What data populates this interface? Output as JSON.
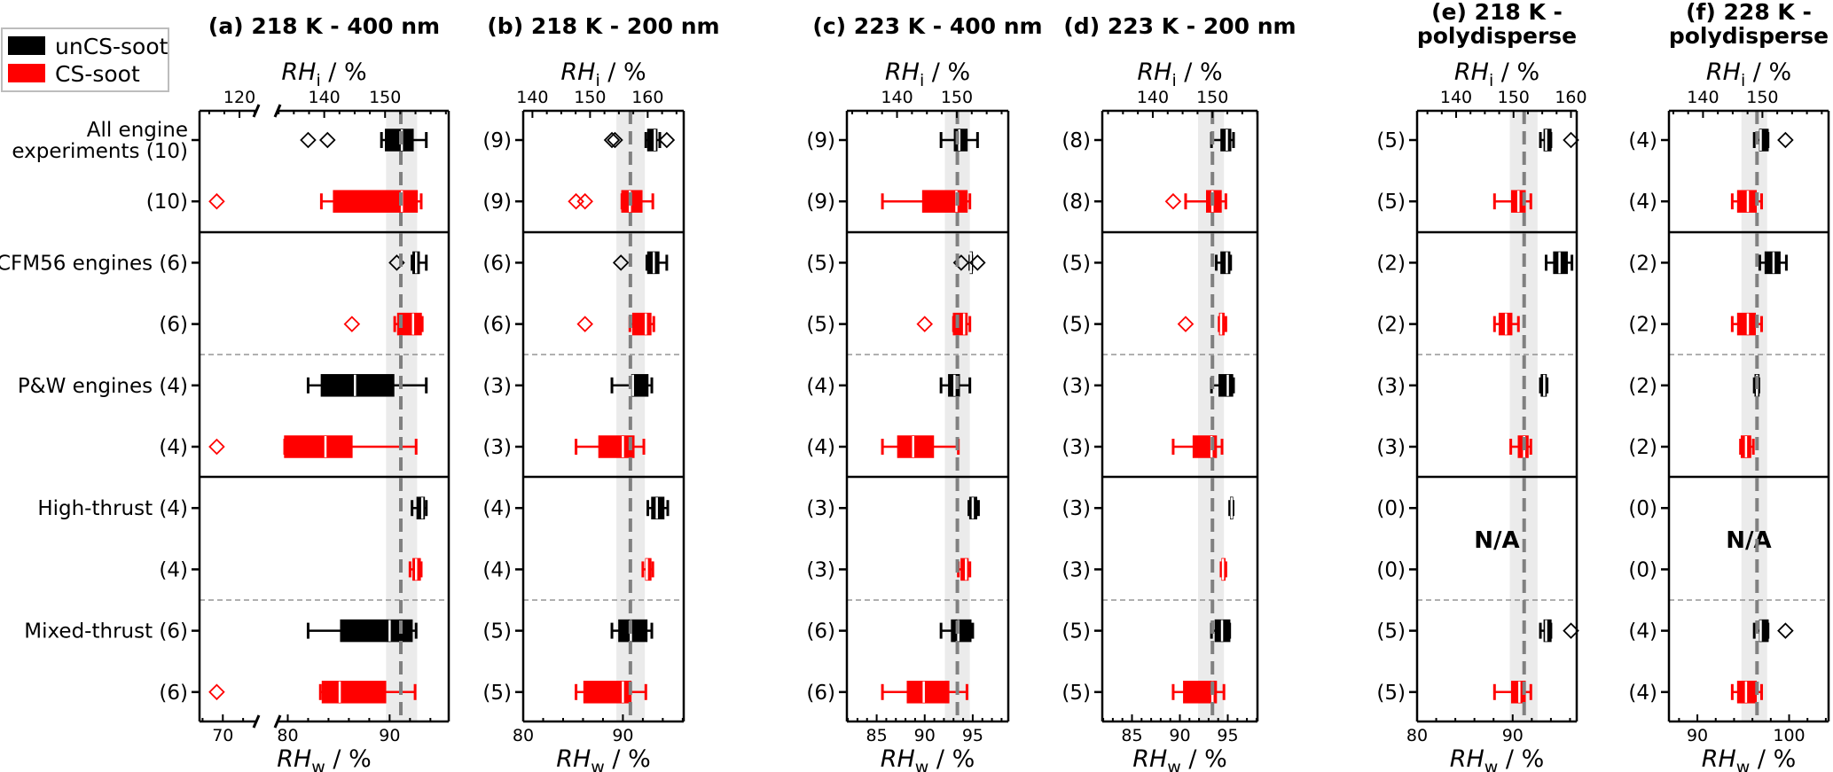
{
  "legend": {
    "items": [
      {
        "label": "unCS-soot",
        "color": "#000000"
      },
      {
        "label": "CS-soot",
        "color": "#ff0000"
      }
    ]
  },
  "chart_data": [
    {
      "type": "box",
      "title": [
        "(a) 218 K - 400 nm"
      ],
      "top_xlabel": {
        "var": "RH",
        "sub": "i",
        "unit": " / %"
      },
      "xlabel": {
        "var": "RH",
        "sub": "w",
        "unit": " / %"
      },
      "xlim": [
        67.7,
        95.8
      ],
      "xbreak": [
        73.3,
        79.0
      ],
      "xticks": [
        70,
        80,
        90
      ],
      "minor_step": 2,
      "top_ticks": [
        120,
        140,
        150
      ],
      "rhi_per_rhw": 1.675,
      "threshold_rhw": 91.1,
      "threshold_band": [
        89.65,
        92.7
      ],
      "na_label": "",
      "rows": [
        {
          "label": "All engine\nexperiments (10)",
          "series": "unCS-soot",
          "stats": [
            89.2,
            89.6,
            91.2,
            92.3,
            93.6
          ],
          "fliers": [
            82.0,
            83.9
          ]
        },
        {
          "label": "(10)",
          "series": "CS-soot",
          "stats": [
            83.3,
            84.5,
            91.2,
            92.7,
            93.1
          ],
          "fliers": [
            69.4
          ]
        },
        {
          "label": "CFM56 engines (6)",
          "series": "unCS-soot",
          "stats": [
            92.2,
            92.3,
            92.6,
            92.9,
            93.6
          ],
          "fliers": [
            90.7
          ]
        },
        {
          "label": "(6)",
          "series": "CS-soot",
          "stats": [
            90.5,
            90.8,
            92.3,
            93.1,
            93.2
          ],
          "fliers": [
            86.3
          ]
        },
        {
          "label": "P&W engines (4)",
          "series": "unCS-soot",
          "stats": [
            82.0,
            83.3,
            86.6,
            90.4,
            93.6
          ],
          "fliers": []
        },
        {
          "label": "(4)",
          "series": "CS-soot",
          "stats": [
            79.7,
            79.7,
            83.7,
            86.3,
            92.6
          ],
          "fliers": [
            69.4
          ]
        },
        {
          "label": "High-thrust (4)",
          "series": "unCS-soot",
          "stats": [
            92.2,
            92.7,
            93.2,
            93.4,
            93.6
          ],
          "fliers": []
        },
        {
          "label": "(4)",
          "series": "CS-soot",
          "stats": [
            92.0,
            92.3,
            92.6,
            93.0,
            93.1
          ],
          "fliers": []
        },
        {
          "label": "Mixed-thrust (6)",
          "series": "unCS-soot",
          "stats": [
            82.0,
            85.2,
            90.0,
            92.2,
            92.6
          ],
          "fliers": []
        },
        {
          "label": "(6)",
          "series": "CS-soot",
          "stats": [
            83.2,
            83.4,
            85.1,
            89.6,
            92.5
          ],
          "fliers": [
            69.4
          ]
        }
      ]
    },
    {
      "type": "box",
      "title": [
        "(b) 218 K - 200 nm"
      ],
      "top_xlabel": {
        "var": "RH",
        "sub": "i",
        "unit": " / %"
      },
      "xlabel": {
        "var": "RH",
        "sub": "w",
        "unit": " / %"
      },
      "xlim": [
        80,
        96.1
      ],
      "xbreak": null,
      "xticks": [
        80,
        90
      ],
      "minor_step": 2,
      "top_ticks": [
        140,
        150,
        160
      ],
      "rhi_per_rhw": 1.73,
      "threshold_rhw": 90.75,
      "threshold_band": [
        89.35,
        92.2
      ],
      "na_label": "",
      "rows": [
        {
          "label": "(9)",
          "series": "unCS-soot",
          "stats": [
            92.3,
            92.5,
            93.2,
            93.4,
            93.7
          ],
          "fliers": [
            88.9,
            89.2,
            94.4
          ]
        },
        {
          "label": "(9)",
          "series": "CS-soot",
          "stats": [
            89.9,
            89.9,
            90.7,
            91.9,
            93.0
          ],
          "fliers": [
            85.3,
            86.2
          ]
        },
        {
          "label": "(6)",
          "series": "unCS-soot",
          "stats": [
            92.4,
            92.5,
            93.1,
            93.6,
            94.4
          ],
          "fliers": [
            89.8
          ]
        },
        {
          "label": "(6)",
          "series": "CS-soot",
          "stats": [
            90.7,
            91.0,
            92.3,
            92.8,
            93.1
          ],
          "fliers": [
            86.2
          ]
        },
        {
          "label": "(3)",
          "series": "unCS-soot",
          "stats": [
            88.9,
            90.9,
            91.0,
            92.5,
            92.9
          ],
          "fliers": []
        },
        {
          "label": "(3)",
          "series": "CS-soot",
          "stats": [
            85.3,
            87.6,
            90.0,
            91.1,
            92.1
          ],
          "fliers": []
        },
        {
          "label": "(4)",
          "series": "unCS-soot",
          "stats": [
            92.5,
            92.9,
            93.4,
            94.1,
            94.5
          ],
          "fliers": []
        },
        {
          "label": "(4)",
          "series": "CS-soot",
          "stats": [
            92.0,
            92.3,
            92.4,
            92.8,
            93.0
          ],
          "fliers": []
        },
        {
          "label": "(5)",
          "series": "unCS-soot",
          "stats": [
            88.9,
            89.6,
            90.8,
            92.4,
            92.9
          ],
          "fliers": []
        },
        {
          "label": "(5)",
          "series": "CS-soot",
          "stats": [
            85.3,
            86.1,
            90.0,
            90.8,
            92.3
          ],
          "fliers": []
        }
      ]
    },
    {
      "type": "box",
      "title": [
        "(c) 223 K - 400 nm"
      ],
      "top_xlabel": {
        "var": "RH",
        "sub": "i",
        "unit": " / %"
      },
      "xlabel": {
        "var": "RH",
        "sub": "w",
        "unit": " / %"
      },
      "xlim": [
        81.9,
        98.7
      ],
      "xbreak": null,
      "xticks": [
        85,
        90,
        95
      ],
      "minor_step": 1,
      "top_ticks": [
        140,
        150
      ],
      "rhi_per_rhw": 1.607,
      "threshold_rhw": 93.4,
      "threshold_band": [
        92.1,
        94.7
      ],
      "na_label": "",
      "rows": [
        {
          "label": "(9)",
          "series": "unCS-soot",
          "stats": [
            91.7,
            93.1,
            93.6,
            94.4,
            95.5
          ],
          "fliers": []
        },
        {
          "label": "(9)",
          "series": "CS-soot",
          "stats": [
            85.6,
            89.8,
            93.3,
            94.4,
            94.7
          ],
          "fliers": []
        },
        {
          "label": "(5)",
          "series": "unCS-soot",
          "stats": [
            94.7,
            94.75,
            94.8,
            94.85,
            94.9
          ],
          "fliers": [
            93.8,
            95.5
          ]
        },
        {
          "label": "(5)",
          "series": "CS-soot",
          "stats": [
            93.0,
            93.0,
            94.1,
            94.4,
            94.7
          ],
          "fliers": [
            90.0
          ]
        },
        {
          "label": "(4)",
          "series": "unCS-soot",
          "stats": [
            91.7,
            92.5,
            93.1,
            93.6,
            94.7
          ],
          "fliers": []
        },
        {
          "label": "(4)",
          "series": "CS-soot",
          "stats": [
            85.6,
            87.2,
            88.8,
            90.9,
            93.5
          ],
          "fliers": []
        },
        {
          "label": "(3)",
          "series": "unCS-soot",
          "stats": [
            94.6,
            94.7,
            95.0,
            95.4,
            95.6
          ],
          "fliers": []
        },
        {
          "label": "(3)",
          "series": "CS-soot",
          "stats": [
            93.5,
            93.8,
            94.3,
            94.5,
            94.7
          ],
          "fliers": []
        },
        {
          "label": "(6)",
          "series": "unCS-soot",
          "stats": [
            91.7,
            92.8,
            93.5,
            94.8,
            95.0
          ],
          "fliers": []
        },
        {
          "label": "(6)",
          "series": "CS-soot",
          "stats": [
            85.6,
            88.2,
            89.9,
            92.5,
            94.4
          ],
          "fliers": []
        }
      ]
    },
    {
      "type": "box",
      "title": [
        "(d) 223 K - 200 nm"
      ],
      "top_xlabel": {
        "var": "RH",
        "sub": "i",
        "unit": " / %"
      },
      "xlabel": {
        "var": "RH",
        "sub": "w",
        "unit": " / %"
      },
      "xlim": [
        81.9,
        98.1
      ],
      "xbreak": null,
      "xticks": [
        85,
        90,
        95
      ],
      "minor_step": 1,
      "top_ticks": [
        140,
        150
      ],
      "rhi_per_rhw": 1.606,
      "threshold_rhw": 93.4,
      "threshold_band": [
        91.9,
        94.6
      ],
      "na_label": "",
      "rows": [
        {
          "label": "(8)",
          "series": "unCS-soot",
          "stats": [
            93.3,
            94.3,
            94.9,
            95.3,
            95.6
          ],
          "fliers": []
        },
        {
          "label": "(8)",
          "series": "CS-soot",
          "stats": [
            90.6,
            92.8,
            93.4,
            94.3,
            94.8
          ],
          "fliers": [
            89.3
          ]
        },
        {
          "label": "(5)",
          "series": "unCS-soot",
          "stats": [
            93.8,
            94.3,
            94.9,
            95.2,
            95.3
          ],
          "fliers": []
        },
        {
          "label": "(5)",
          "series": "CS-soot",
          "stats": [
            94.1,
            94.15,
            94.3,
            94.6,
            94.8
          ],
          "fliers": [
            90.6
          ]
        },
        {
          "label": "(3)",
          "series": "unCS-soot",
          "stats": [
            93.3,
            94.1,
            95.0,
            95.5,
            95.6
          ],
          "fliers": []
        },
        {
          "label": "(3)",
          "series": "CS-soot",
          "stats": [
            89.3,
            91.4,
            93.3,
            93.8,
            94.4
          ],
          "fliers": []
        },
        {
          "label": "(3)",
          "series": "unCS-soot",
          "stats": [
            95.2,
            95.3,
            95.4,
            95.5,
            95.55
          ],
          "fliers": []
        },
        {
          "label": "(3)",
          "series": "CS-soot",
          "stats": [
            94.3,
            94.4,
            94.5,
            94.7,
            94.8
          ],
          "fliers": []
        },
        {
          "label": "(5)",
          "series": "unCS-soot",
          "stats": [
            93.3,
            93.7,
            94.4,
            95.2,
            95.2
          ],
          "fliers": []
        },
        {
          "label": "(5)",
          "series": "CS-soot",
          "stats": [
            89.3,
            90.4,
            93.4,
            93.8,
            94.6
          ],
          "fliers": []
        }
      ]
    },
    {
      "type": "box",
      "title": [
        "(e) 218 K -",
        "polydisperse"
      ],
      "top_xlabel": {
        "var": "RH",
        "sub": "i",
        "unit": " / %"
      },
      "xlabel": {
        "var": "RH",
        "sub": "w",
        "unit": " / %"
      },
      "xlim": [
        80,
        96.7
      ],
      "xbreak": null,
      "xticks": [
        80,
        90
      ],
      "minor_step": 2,
      "top_ticks": [
        140,
        150,
        160
      ],
      "rhi_per_rhw": 1.665,
      "threshold_rhw": 91.2,
      "threshold_band": [
        89.7,
        92.6
      ],
      "na_label": "N/A",
      "rows": [
        {
          "label": "(5)",
          "series": "unCS-soot",
          "stats": [
            92.9,
            93.3,
            93.5,
            94.0,
            94.0
          ],
          "fliers": [
            96.1
          ]
        },
        {
          "label": "(5)",
          "series": "CS-soot",
          "stats": [
            88.1,
            89.9,
            90.6,
            91.3,
            91.9
          ],
          "fliers": []
        },
        {
          "label": "(2)",
          "series": "unCS-soot",
          "stats": [
            93.5,
            94.3,
            94.9,
            95.7,
            96.2
          ],
          "fliers": []
        },
        {
          "label": "(2)",
          "series": "CS-soot",
          "stats": [
            88.1,
            88.6,
            89.3,
            89.9,
            90.6
          ],
          "fliers": []
        },
        {
          "label": "(3)",
          "series": "unCS-soot",
          "stats": [
            92.9,
            93.0,
            93.3,
            93.5,
            93.6
          ],
          "fliers": []
        },
        {
          "label": "(3)",
          "series": "CS-soot",
          "stats": [
            89.8,
            90.6,
            91.2,
            91.6,
            91.9
          ],
          "fliers": []
        },
        {
          "label": "(0)",
          "series": "unCS-soot",
          "stats": null,
          "fliers": []
        },
        {
          "label": "(0)",
          "series": "CS-soot",
          "stats": null,
          "fliers": []
        },
        {
          "label": "(5)",
          "series": "unCS-soot",
          "stats": [
            92.9,
            93.3,
            93.5,
            94.0,
            94.0
          ],
          "fliers": [
            96.1
          ]
        },
        {
          "label": "(5)",
          "series": "CS-soot",
          "stats": [
            88.1,
            89.9,
            90.7,
            91.3,
            91.9
          ],
          "fliers": []
        }
      ]
    },
    {
      "type": "box",
      "title": [
        "(f) 228 K -",
        "polydisperse"
      ],
      "top_xlabel": {
        "var": "RH",
        "sub": "i",
        "unit": " / %"
      },
      "xlabel": {
        "var": "RH",
        "sub": "w",
        "unit": " / %"
      },
      "xlim": [
        86.9,
        104.3
      ],
      "xbreak": null,
      "xticks": [
        90,
        100
      ],
      "minor_step": 2,
      "top_ticks": [
        140,
        150
      ],
      "rhi_per_rhw": 1.545,
      "threshold_rhw": 96.5,
      "threshold_band": [
        94.8,
        97.6
      ],
      "na_label": "N/A",
      "rows": [
        {
          "label": "(4)",
          "series": "unCS-soot",
          "stats": [
            96.2,
            96.8,
            96.9,
            97.7,
            97.7
          ],
          "fliers": [
            99.6
          ]
        },
        {
          "label": "(4)",
          "series": "CS-soot",
          "stats": [
            93.8,
            94.4,
            95.5,
            96.4,
            97.0
          ],
          "fliers": []
        },
        {
          "label": "(2)",
          "series": "unCS-soot",
          "stats": [
            96.8,
            97.4,
            98.3,
            99.0,
            99.7
          ],
          "fliers": []
        },
        {
          "label": "(2)",
          "series": "CS-soot",
          "stats": [
            93.8,
            94.4,
            95.5,
            96.3,
            97.0
          ],
          "fliers": []
        },
        {
          "label": "(2)",
          "series": "unCS-soot",
          "stats": [
            96.2,
            96.3,
            96.5,
            96.7,
            96.7
          ],
          "fliers": []
        },
        {
          "label": "(2)",
          "series": "CS-soot",
          "stats": [
            94.7,
            94.8,
            95.3,
            95.8,
            96.1
          ],
          "fliers": []
        },
        {
          "label": "(0)",
          "series": "unCS-soot",
          "stats": null,
          "fliers": []
        },
        {
          "label": "(0)",
          "series": "CS-soot",
          "stats": null,
          "fliers": []
        },
        {
          "label": "(4)",
          "series": "unCS-soot",
          "stats": [
            96.2,
            96.8,
            96.9,
            97.7,
            97.7
          ],
          "fliers": [
            99.6
          ]
        },
        {
          "label": "(4)",
          "series": "CS-soot",
          "stats": [
            93.8,
            94.4,
            95.3,
            96.4,
            97.0
          ],
          "fliers": []
        }
      ]
    }
  ]
}
